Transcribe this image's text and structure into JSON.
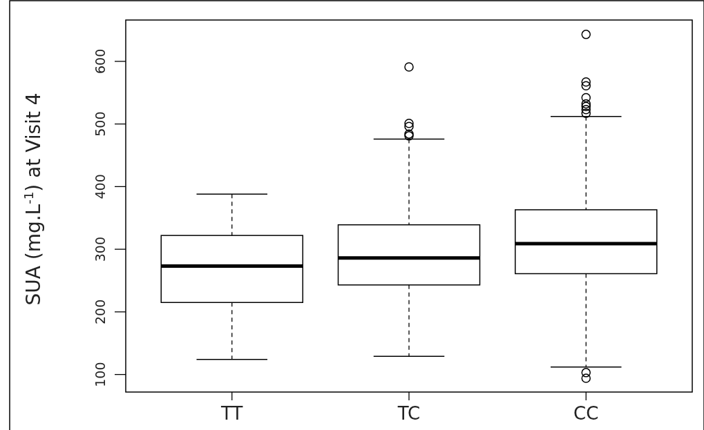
{
  "chart_data": {
    "type": "box",
    "ylabel": "SUA (mg.L$^{-1}$) at Visit 4",
    "categories": [
      "TT",
      "TC",
      "CC"
    ],
    "boxes": [
      {
        "low": 124,
        "q1": 215,
        "median": 273,
        "q3": 322,
        "high": 388
      },
      {
        "low": 129,
        "q1": 243,
        "median": 286,
        "q3": 339,
        "high": 476,
        "outliers": [
          481,
          484,
          496,
          501,
          591
        ]
      },
      {
        "low": 112,
        "q1": 261,
        "median": 309,
        "q3": 363,
        "high": 512,
        "outliers": [
          94,
          103,
          517,
          523,
          528,
          532,
          542,
          561,
          567,
          643
        ]
      }
    ],
    "color": "#000000",
    "ylim": [
      72,
      666
    ],
    "yticks": [
      100,
      200,
      300,
      400,
      500,
      600
    ]
  }
}
